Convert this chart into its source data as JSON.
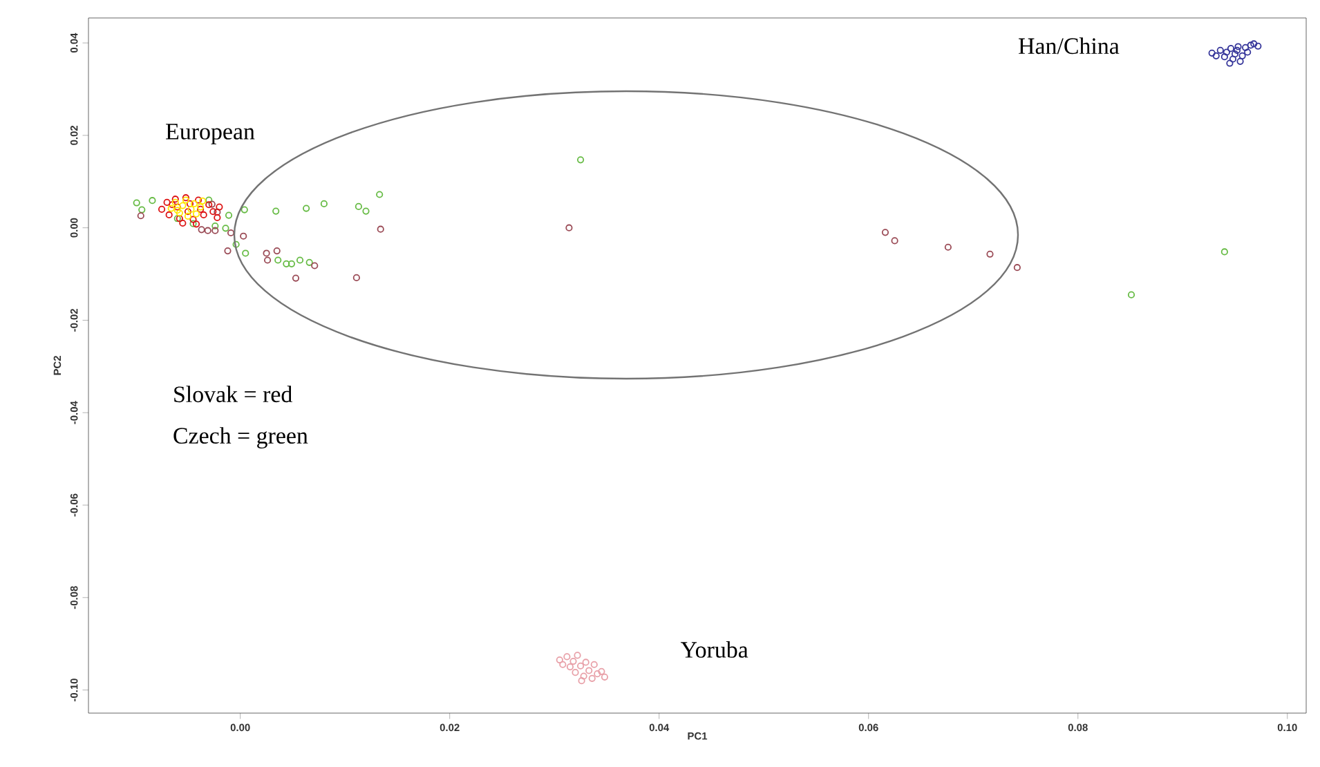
{
  "chart_data": {
    "type": "scatter",
    "xlabel": "PC1",
    "ylabel": "PC2",
    "marker": "circle",
    "xlim": [
      -0.0145,
      0.1018
    ],
    "ylim": [
      -0.105,
      0.0454
    ],
    "xticks": [
      {
        "value": 0,
        "label": "0.00"
      },
      {
        "value": 0.02,
        "label": "0.02"
      },
      {
        "value": 0.04,
        "label": "0.04"
      },
      {
        "value": 0.06,
        "label": "0.06"
      },
      {
        "value": 0.08,
        "label": "0.08"
      },
      {
        "value": 0.1,
        "label": "0.10"
      }
    ],
    "yticks": [
      {
        "value": -0.1,
        "label": "-0.10"
      },
      {
        "value": -0.08,
        "label": "-0.08"
      },
      {
        "value": -0.06,
        "label": "-0.06"
      },
      {
        "value": -0.04,
        "label": "-0.04"
      },
      {
        "value": -0.02,
        "label": "-0.02"
      },
      {
        "value": 0,
        "label": "0.00"
      },
      {
        "value": 0.02,
        "label": "0.02"
      },
      {
        "value": 0.04,
        "label": "0.04"
      }
    ],
    "series": [
      {
        "color": "#66bb44",
        "x": [
          -0.0099,
          -0.0094,
          -0.0084,
          -0.0011,
          0.0004,
          0.0034,
          0.0063,
          0.008,
          0.0113,
          0.012,
          0.0133,
          -0.0024,
          -0.0014,
          -0.0004,
          0.0005,
          0.0036,
          0.0044,
          0.0049,
          0.0057,
          0.0066,
          -0.0045,
          0.0325,
          0.094,
          0.0851,
          -0.006,
          -0.003
        ],
        "values": [
          0.0054,
          0.0039,
          0.0059,
          0.0027,
          0.0039,
          0.0036,
          0.0042,
          0.0052,
          0.0046,
          0.0036,
          0.0072,
          0.0004,
          -0.0001,
          -0.0036,
          -0.0055,
          -0.007,
          -0.0078,
          -0.0078,
          -0.007,
          -0.0075,
          0.0009,
          0.0147,
          -0.0052,
          -0.0145,
          0.002,
          0.006
        ]
      },
      {
        "color": "#9a4a55",
        "x": [
          -0.0095,
          -0.0037,
          -0.0031,
          -0.0024,
          -0.0009,
          0.0003,
          -0.0012,
          0.0025,
          0.0035,
          0.0026,
          0.0071,
          0.0053,
          0.0111,
          0.0134,
          -0.0022,
          -0.0027,
          0.0314,
          0.0616,
          0.0625,
          0.0676,
          0.0716,
          0.0742
        ],
        "values": [
          0.0026,
          -0.0004,
          -0.0006,
          -0.0006,
          -0.0011,
          -0.0018,
          -0.005,
          -0.0055,
          -0.005,
          -0.007,
          -0.0082,
          -0.0109,
          -0.0108,
          -0.0003,
          0.0034,
          0.0051,
          0.0,
          -0.001,
          -0.0028,
          -0.0042,
          -0.0057,
          -0.0086
        ]
      },
      {
        "color": "#dd1111",
        "x": [
          -0.0075,
          -0.007,
          -0.0068,
          -0.0062,
          -0.006,
          -0.0058,
          -0.0052,
          -0.005,
          -0.0048,
          -0.0045,
          -0.004,
          -0.0038,
          -0.0035,
          -0.003,
          -0.0026,
          -0.0022,
          -0.002,
          -0.0055,
          -0.0042,
          -0.0065
        ],
        "values": [
          0.004,
          0.0055,
          0.0028,
          0.0062,
          0.0045,
          0.002,
          0.0065,
          0.0035,
          0.0052,
          0.0018,
          0.006,
          0.004,
          0.0028,
          0.005,
          0.0035,
          0.0022,
          0.0045,
          0.001,
          0.0008,
          0.005
        ]
      },
      {
        "color": "#ffe600",
        "x": [
          -0.0066,
          -0.0062,
          -0.0058,
          -0.0055,
          -0.0052,
          -0.005,
          -0.0047,
          -0.0044,
          -0.0042,
          -0.0038,
          -0.0036,
          -0.006
        ],
        "values": [
          0.0042,
          0.0055,
          0.0032,
          0.0048,
          0.006,
          0.0025,
          0.004,
          0.0052,
          0.003,
          0.0045,
          0.0058,
          0.0038
        ]
      },
      {
        "color": "#333399",
        "x": [
          0.0928,
          0.0932,
          0.0936,
          0.094,
          0.0942,
          0.0946,
          0.0948,
          0.095,
          0.0952,
          0.0955,
          0.0957,
          0.096,
          0.0962,
          0.0965,
          0.0968,
          0.0972,
          0.0945,
          0.0953
        ],
        "values": [
          0.0378,
          0.0372,
          0.0384,
          0.037,
          0.038,
          0.0388,
          0.0365,
          0.0376,
          0.0384,
          0.036,
          0.0372,
          0.039,
          0.038,
          0.0395,
          0.0398,
          0.0393,
          0.0356,
          0.0392
        ]
      },
      {
        "color": "#e8a0a8",
        "x": [
          0.0305,
          0.0308,
          0.0312,
          0.0315,
          0.0318,
          0.032,
          0.0322,
          0.0325,
          0.0328,
          0.033,
          0.0333,
          0.0336,
          0.0338,
          0.0341,
          0.0345,
          0.0348,
          0.0326
        ],
        "values": [
          -0.0935,
          -0.0945,
          -0.0928,
          -0.095,
          -0.0938,
          -0.0962,
          -0.0925,
          -0.0948,
          -0.097,
          -0.094,
          -0.0958,
          -0.0975,
          -0.0945,
          -0.0965,
          -0.096,
          -0.0972,
          -0.098
        ]
      }
    ],
    "annotations": [
      "European",
      "Han/China",
      "Yoruba",
      "Slovak = red",
      "Czech = green"
    ]
  }
}
